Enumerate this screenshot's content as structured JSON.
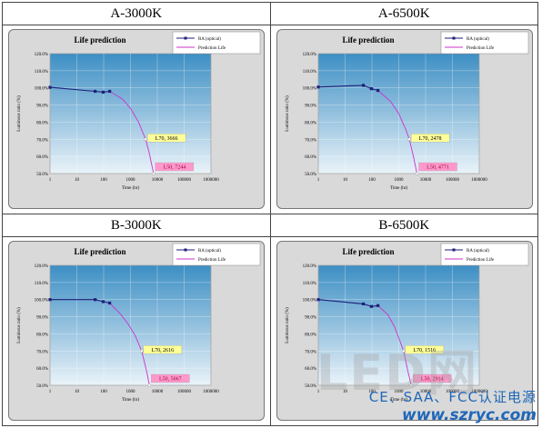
{
  "sections": [
    {
      "title": "A-3000K"
    },
    {
      "title": "A-6500K"
    },
    {
      "title": "B-3000K"
    },
    {
      "title": "B-6500K"
    }
  ],
  "watermark": {
    "logo_text": "LED网",
    "line1": "CE、SAA、FCC认证电源",
    "url": "www.szryc.com"
  },
  "colors": {
    "plot_bg_top": "#3d8fc4",
    "plot_bg_bottom": "#eaf3f9",
    "actual_line": "#1f1f7a",
    "prediction_line": "#cc33cc",
    "l70_label_bg": "#ffff99",
    "l50_label_bg": "#ff99cc",
    "panel_bg": "#d9d9d9"
  },
  "chart_data": [
    {
      "type": "line",
      "title": "Life prediction",
      "xlabel": "Time (hr)",
      "ylabel": "Luminous ratio (%)",
      "xscale": "log",
      "xlim": [
        1,
        1000000
      ],
      "xticks": [
        "1",
        "10",
        "100",
        "1000",
        "10000",
        "100000",
        "1000000"
      ],
      "ylim": [
        50,
        120
      ],
      "yticks": [
        "50.0%",
        "60.0%",
        "70.0%",
        "80.0%",
        "90.0%",
        "100.0%",
        "110.0%",
        "120.0%"
      ],
      "legend_position": "top-right",
      "series": [
        {
          "name": "RA (optical)",
          "x": [
            1,
            48,
            96,
            168
          ],
          "y": [
            100.3,
            98.0,
            97.5,
            98.0
          ]
        },
        {
          "name": "Prediction Life",
          "x": [
            168,
            500,
            1000,
            2000,
            3666,
            5000,
            7244
          ],
          "y": [
            98.0,
            93.5,
            88.0,
            80.0,
            70.0,
            62.0,
            50.0
          ]
        }
      ],
      "annotations": [
        {
          "text": "L70, 3666",
          "x": 3666,
          "y": 70
        },
        {
          "text": "L50, 7244",
          "x": 7244,
          "y": 50
        }
      ]
    },
    {
      "type": "line",
      "title": "Life prediction",
      "xlabel": "Time (hr)",
      "ylabel": "Luminous ratio (%)",
      "xscale": "log",
      "xlim": [
        1,
        1000000
      ],
      "xticks": [
        "1",
        "10",
        "100",
        "1000",
        "10000",
        "100000",
        "1000000"
      ],
      "ylim": [
        50,
        120
      ],
      "yticks": [
        "50.0%",
        "60.0%",
        "70.0%",
        "80.0%",
        "90.0%",
        "100.0%",
        "110.0%",
        "120.0%"
      ],
      "legend_position": "top-right",
      "series": [
        {
          "name": "RA (optical)",
          "x": [
            1,
            48,
            96,
            168
          ],
          "y": [
            100.5,
            101.5,
            99.5,
            98.5
          ]
        },
        {
          "name": "Prediction Life",
          "x": [
            168,
            500,
            1000,
            1800,
            2478,
            3500,
            4771
          ],
          "y": [
            98.5,
            92.0,
            85.0,
            76.0,
            70.0,
            60.0,
            50.0
          ]
        }
      ],
      "annotations": [
        {
          "text": "L70, 2478",
          "x": 2478,
          "y": 70
        },
        {
          "text": "L50, 4771",
          "x": 4771,
          "y": 50
        }
      ]
    },
    {
      "type": "line",
      "title": "Life prediction",
      "xlabel": "Time (hr)",
      "ylabel": "Luminous ratio (%)",
      "xscale": "log",
      "xlim": [
        1,
        1000000
      ],
      "xticks": [
        "1",
        "10",
        "100",
        "1000",
        "10000",
        "100000",
        "1000000"
      ],
      "ylim": [
        50,
        120
      ],
      "yticks": [
        "50.0%",
        "60.0%",
        "70.0%",
        "80.0%",
        "90.0%",
        "100.0%",
        "110.0%",
        "120.0%"
      ],
      "legend_position": "top-right",
      "series": [
        {
          "name": "RA (optical)",
          "x": [
            1,
            48,
            96,
            168
          ],
          "y": [
            100.0,
            100.0,
            98.8,
            98.0
          ]
        },
        {
          "name": "Prediction Life",
          "x": [
            168,
            400,
            800,
            1500,
            2616,
            4000,
            5067
          ],
          "y": [
            98.0,
            92.0,
            86.0,
            79.0,
            70.0,
            58.0,
            50.0
          ]
        }
      ],
      "annotations": [
        {
          "text": "L70, 2616",
          "x": 2616,
          "y": 70
        },
        {
          "text": "L50, 5067",
          "x": 5067,
          "y": 50
        }
      ]
    },
    {
      "type": "line",
      "title": "Life prediction",
      "xlabel": "Time (hr)",
      "ylabel": "Luminous ratio (%)",
      "xscale": "log",
      "xlim": [
        1,
        1000000
      ],
      "xticks": [
        "1",
        "10",
        "100",
        "1000",
        "10000",
        "100000",
        "1000000"
      ],
      "ylim": [
        50,
        120
      ],
      "yticks": [
        "50.0%",
        "60.0%",
        "70.0%",
        "80.0%",
        "90.0%",
        "100.0%",
        "110.0%",
        "120.0%"
      ],
      "legend_position": "top-right",
      "series": [
        {
          "name": "RA (optical)",
          "x": [
            1,
            48,
            96,
            168
          ],
          "y": [
            100.0,
            97.5,
            96.0,
            96.5
          ]
        },
        {
          "name": "Prediction Life",
          "x": [
            168,
            400,
            700,
            1100,
            1516,
            2200,
            2914
          ],
          "y": [
            96.5,
            91.0,
            84.0,
            76.0,
            70.0,
            58.0,
            50.0
          ]
        }
      ],
      "annotations": [
        {
          "text": "L70, 1516",
          "x": 1516,
          "y": 70
        },
        {
          "text": "L50, 2914",
          "x": 2914,
          "y": 50
        }
      ]
    }
  ]
}
